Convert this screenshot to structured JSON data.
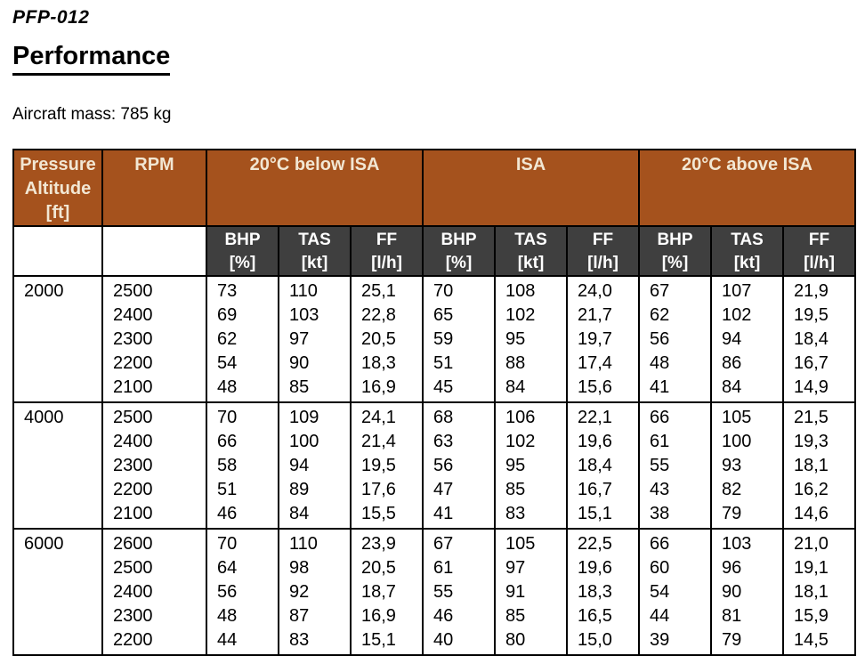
{
  "page": {
    "doc_code": "PFP-012",
    "title": "Performance",
    "mass_note": "Aircraft mass: 785 kg"
  },
  "colors": {
    "header_brown": "#A5521D",
    "header_gray": "#3F3F3F",
    "header_cream": "#F2E7D3",
    "border_black": "#000000",
    "page_bg": "#FFFFFF",
    "body_text": "#000000"
  },
  "table": {
    "header": {
      "altitude": "Pressure\nAltitude\n[ft]",
      "rpm": "RPM",
      "temp_groups": [
        "20°C below ISA",
        "ISA",
        "20°C above ISA"
      ],
      "sub_columns": [
        "BHP\n[%]",
        "TAS\n[kt]",
        "FF\n[l/h]"
      ]
    },
    "groups": [
      {
        "altitude": "2000",
        "rpm": [
          "2500",
          "2400",
          "2300",
          "2200",
          "2100"
        ],
        "below_isa": {
          "bhp_pct": [
            "73",
            "69",
            "62",
            "54",
            "48"
          ],
          "tas_kt": [
            "110",
            "103",
            "97",
            "90",
            "85"
          ],
          "ff_lh": [
            "25,1",
            "22,8",
            "20,5",
            "18,3",
            "16,9"
          ]
        },
        "isa": {
          "bhp_pct": [
            "70",
            "65",
            "59",
            "51",
            "45"
          ],
          "tas_kt": [
            "108",
            "102",
            "95",
            "88",
            "84"
          ],
          "ff_lh": [
            "24,0",
            "21,7",
            "19,7",
            "17,4",
            "15,6"
          ]
        },
        "above_isa": {
          "bhp_pct": [
            "67",
            "62",
            "56",
            "48",
            "41"
          ],
          "tas_kt": [
            "107",
            "102",
            "94",
            "86",
            "84"
          ],
          "ff_lh": [
            "21,9",
            "19,5",
            "18,4",
            "16,7",
            "14,9"
          ]
        }
      },
      {
        "altitude": "4000",
        "rpm": [
          "2500",
          "2400",
          "2300",
          "2200",
          "2100"
        ],
        "below_isa": {
          "bhp_pct": [
            "70",
            "66",
            "58",
            "51",
            "46"
          ],
          "tas_kt": [
            "109",
            "100",
            "94",
            "89",
            "84"
          ],
          "ff_lh": [
            "24,1",
            "21,4",
            "19,5",
            "17,6",
            "15,5"
          ]
        },
        "isa": {
          "bhp_pct": [
            "68",
            "63",
            "56",
            "47",
            "41"
          ],
          "tas_kt": [
            "106",
            "102",
            "95",
            "85",
            "83"
          ],
          "ff_lh": [
            "22,1",
            "19,6",
            "18,4",
            "16,7",
            "15,1"
          ]
        },
        "above_isa": {
          "bhp_pct": [
            "66",
            "61",
            "55",
            "43",
            "38"
          ],
          "tas_kt": [
            "105",
            "100",
            "93",
            "82",
            "79"
          ],
          "ff_lh": [
            "21,5",
            "19,3",
            "18,1",
            "16,2",
            "14,6"
          ]
        }
      },
      {
        "altitude": "6000",
        "rpm": [
          "2600",
          "2500",
          "2400",
          "2300",
          "2200"
        ],
        "below_isa": {
          "bhp_pct": [
            "70",
            "64",
            "56",
            "48",
            "44"
          ],
          "tas_kt": [
            "110",
            "98",
            "92",
            "87",
            "83"
          ],
          "ff_lh": [
            "23,9",
            "20,5",
            "18,7",
            "16,9",
            "15,1"
          ]
        },
        "isa": {
          "bhp_pct": [
            "67",
            "61",
            "55",
            "46",
            "40"
          ],
          "tas_kt": [
            "105",
            "97",
            "91",
            "85",
            "80"
          ],
          "ff_lh": [
            "22,5",
            "19,6",
            "18,3",
            "16,5",
            "15,0"
          ]
        },
        "above_isa": {
          "bhp_pct": [
            "66",
            "60",
            "54",
            "44",
            "39"
          ],
          "tas_kt": [
            "103",
            "96",
            "90",
            "81",
            "79"
          ],
          "ff_lh": [
            "21,0",
            "19,1",
            "18,1",
            "15,9",
            "14,5"
          ]
        }
      }
    ]
  }
}
